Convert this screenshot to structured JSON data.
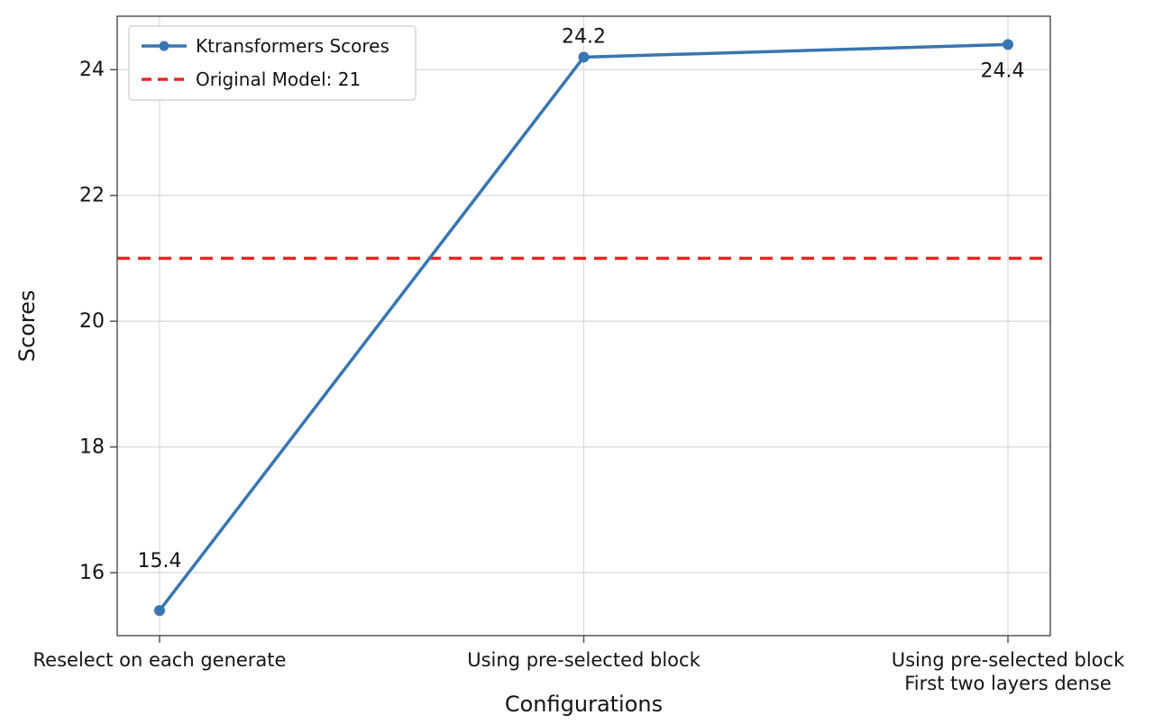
{
  "chart_data": {
    "type": "line",
    "title": "",
    "xlabel": "Configurations",
    "ylabel": "Scores",
    "categories": [
      "Reselect on each generate",
      "Using pre-selected block",
      "Using pre-selected block\nFirst two layers dense"
    ],
    "series": [
      {
        "name": "Ktransformers Scores",
        "values": [
          15.4,
          24.2,
          24.4
        ],
        "color": "#3776b1",
        "marker": "circle"
      }
    ],
    "point_labels": [
      "15.4",
      "24.2",
      "24.4"
    ],
    "reference_line": {
      "label": "Original Model: 21",
      "value": 21,
      "color": "#e62825",
      "style": "dashed"
    },
    "ylim": [
      15.0,
      24.85
    ],
    "yticks": [
      16,
      18,
      20,
      22,
      24
    ],
    "grid": true,
    "legend_position": "upper left",
    "colors": {
      "grid": "#d9d9d9",
      "spine": "#4a4a4a",
      "text": "#141414",
      "legend_border": "#cccccc",
      "background": "#ffffff"
    },
    "legend_items": [
      "Ktransformers Scores",
      "Original Model: 21"
    ]
  }
}
